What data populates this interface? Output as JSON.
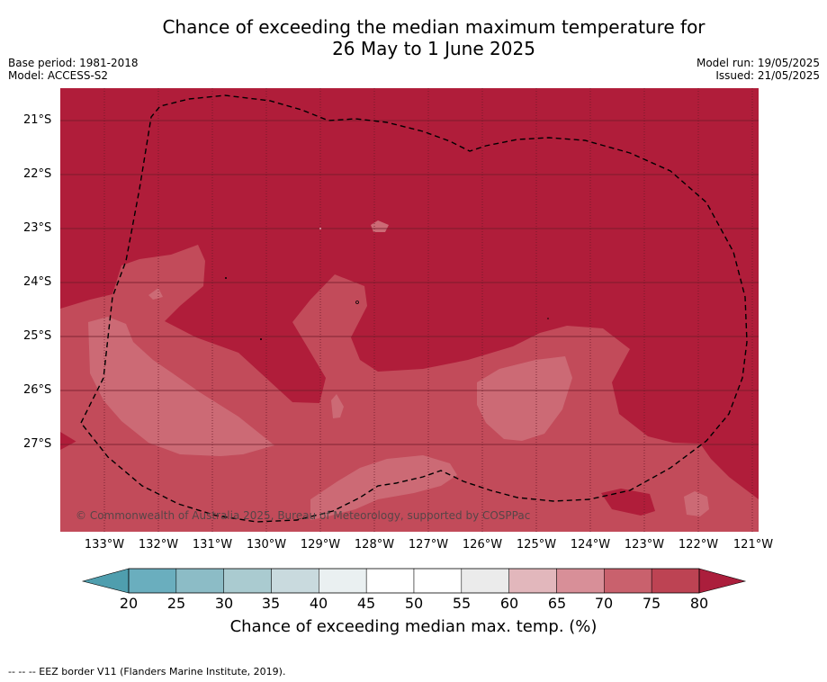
{
  "title": {
    "line1": "Chance of exceeding the median maximum temperature for",
    "line2": "26 May to 1 June 2025"
  },
  "meta_left": {
    "base_period": "Base period: 1981-2018",
    "model": "Model: ACCESS-S2"
  },
  "meta_right": {
    "model_run": "Model run: 19/05/2025",
    "issued": "Issued: 21/05/2025"
  },
  "map": {
    "lat_labels": [
      "21°S",
      "22°S",
      "23°S",
      "24°S",
      "25°S",
      "26°S",
      "27°S"
    ],
    "lon_labels": [
      "133°W",
      "132°W",
      "131°W",
      "130°W",
      "129°W",
      "128°W",
      "127°W",
      "126°W",
      "125°W",
      "124°W",
      "123°W",
      "122°W",
      "121°W"
    ],
    "copyright": "© Commonwealth of Australia 2025, Bureau of Meteorology, supported by COSPPac",
    "colors": {
      "p80": "#b01d3a",
      "p75": "#c24b5a",
      "p70": "#cc6a75",
      "p65": "#d8949c"
    }
  },
  "colorbar": {
    "ticks": [
      "20",
      "25",
      "30",
      "35",
      "40",
      "45",
      "50",
      "55",
      "60",
      "65",
      "70",
      "75",
      "80"
    ],
    "colors": [
      "#6aaebe",
      "#8cbcc6",
      "#aacbd0",
      "#c9dade",
      "#eaf0f1",
      "#ffffff",
      "#ffffff",
      "#ebebeb",
      "#e2b7bc",
      "#d88f98",
      "#c9616d",
      "#bd4353"
    ],
    "under_color": "#4f9eae",
    "over_color": "#ab1e3c",
    "label": "Chance of exceeding median max. temp. (%)"
  },
  "footnote": "--  --  -- EEZ border V11 (Flanders Marine Institute, 2019)."
}
